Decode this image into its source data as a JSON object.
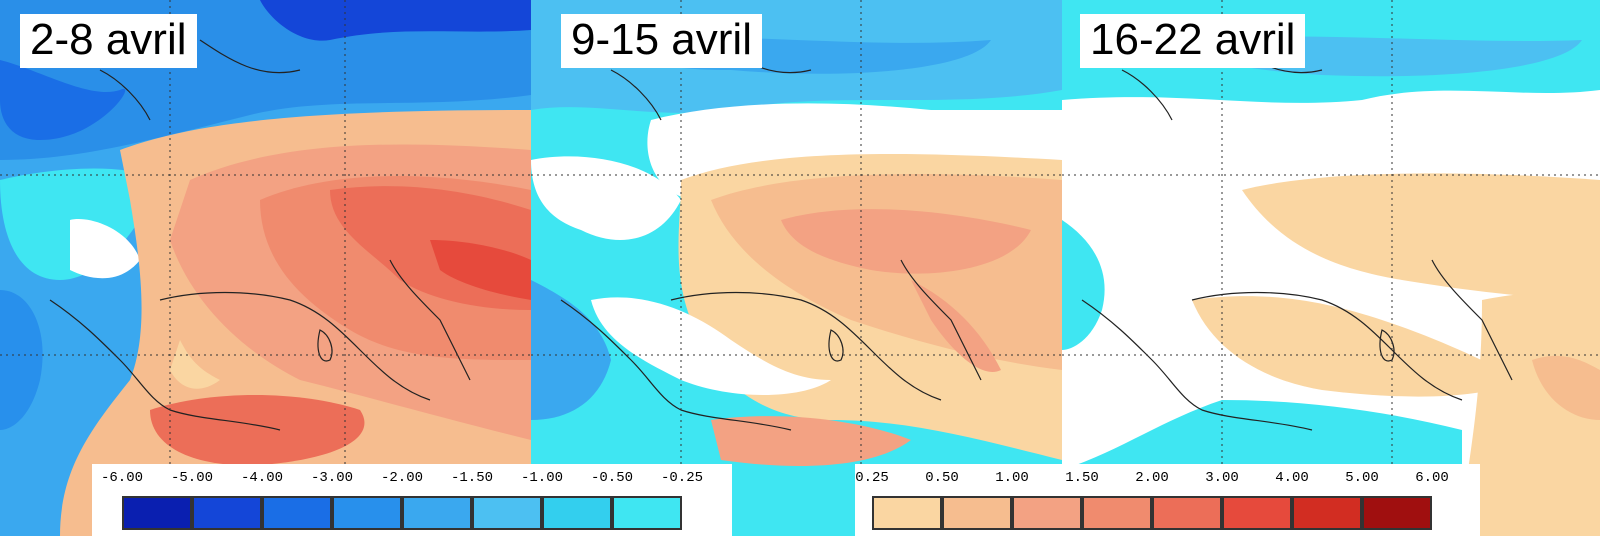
{
  "panels": [
    {
      "title": "2-8 avril"
    },
    {
      "title": "9-15 avril"
    },
    {
      "title": "16-22 avril"
    }
  ],
  "legend": {
    "negative": {
      "ticks": [
        "-6.00",
        "-5.00",
        "-4.00",
        "-3.00",
        "-2.00",
        "-1.50",
        "-1.00",
        "-0.50",
        "-0.25"
      ],
      "colors": [
        "#0a1fb0",
        "#1446d8",
        "#1a6ee6",
        "#2890ec",
        "#3aa8ef",
        "#4cc0f2",
        "#33cfee",
        "#3fe6f2"
      ]
    },
    "positive": {
      "ticks": [
        "0.25",
        "0.50",
        "1.00",
        "1.50",
        "2.00",
        "3.00",
        "4.00",
        "5.00",
        "6.00"
      ],
      "colors": [
        "#fad6a2",
        "#f6bd8f",
        "#f3a283",
        "#f08b6e",
        "#ec6e58",
        "#e64a3c",
        "#d22d22",
        "#a00f0f"
      ]
    }
  }
}
